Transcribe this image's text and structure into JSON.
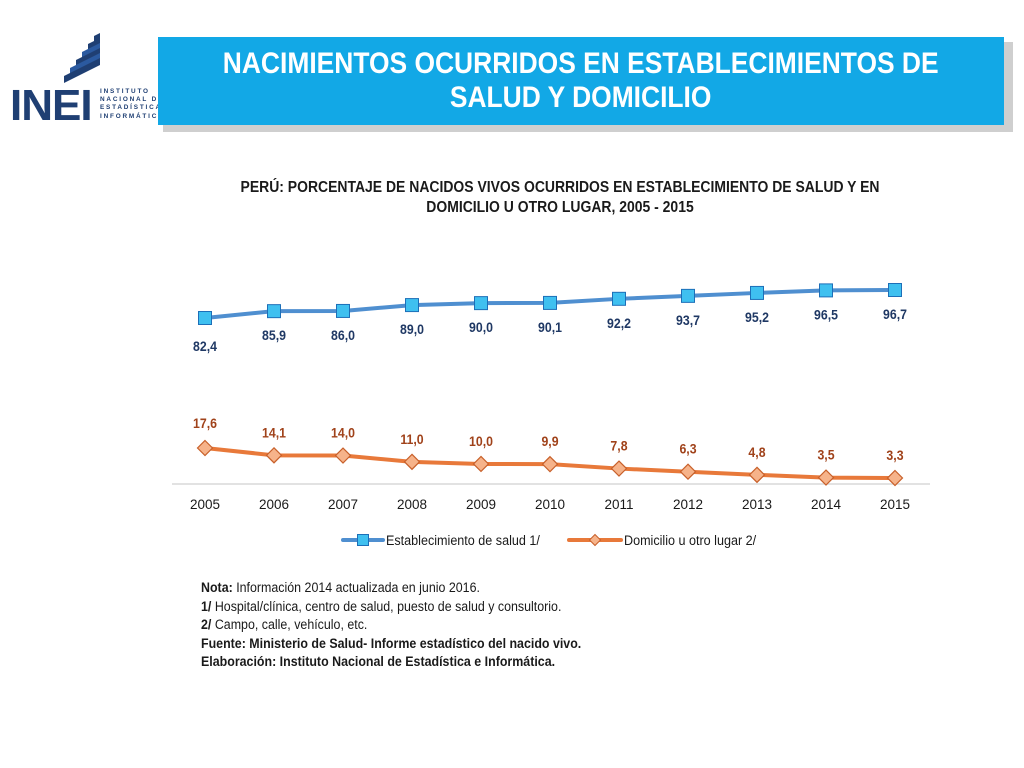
{
  "logo": {
    "letters": "INEI",
    "lines": [
      "INSTITUTO",
      "NACIONAL DE",
      "ESTADÍSTICA E",
      "INFORMÁTICA"
    ]
  },
  "header": {
    "title_line1": "NACIMIENTOS OCURRIDOS EN ESTABLECIMIENTOS DE",
    "title_line2": "SALUD Y DOMICILIO",
    "banner_color": "#12a8e6"
  },
  "chart_data": {
    "type": "line",
    "title_line1": "PERÚ: PORCENTAJE DE NACIDOS VIVOS OCURRIDOS EN ESTABLECIMIENTO DE SALUD Y EN",
    "title_line2": "DOMICILIO U OTRO LUGAR, 2005  - 2015",
    "categories": [
      "2005",
      "2006",
      "2007",
      "2008",
      "2009",
      "2010",
      "2011",
      "2012",
      "2013",
      "2014",
      "2015"
    ],
    "series": [
      {
        "name": "Establecimiento de salud 1/",
        "values": [
          82.4,
          85.9,
          86.0,
          89.0,
          90.0,
          90.1,
          92.2,
          93.7,
          95.2,
          96.5,
          96.7
        ],
        "labels": [
          "82,4",
          "85,9",
          "86,0",
          "89,0",
          "90,0",
          "90,1",
          "92,2",
          "93,7",
          "95,2",
          "96,5",
          "96,7"
        ],
        "color": "#4f8fd0",
        "marker": "square",
        "marker_color": "#3fc0f0",
        "label_color": "#1f3864"
      },
      {
        "name": "Domicilio u otro lugar 2/",
        "values": [
          17.6,
          14.1,
          14.0,
          11.0,
          10.0,
          9.9,
          7.8,
          6.3,
          4.8,
          3.5,
          3.3
        ],
        "labels": [
          "17,6",
          "14,1",
          "14,0",
          "11,0",
          "10,0",
          "9,9",
          "7,8",
          "6,3",
          "4,8",
          "3,5",
          "3,3"
        ],
        "color": "#e8793a",
        "marker": "diamond",
        "marker_color": "#f6b38a",
        "label_color": "#a0421a"
      }
    ],
    "legend_position": "bottom",
    "grid": false
  },
  "notes": {
    "nota_label": "Nota:",
    "nota_text": " Información 2014 actualizada en junio 2016.",
    "n1_label": "1/",
    "n1_text": " Hospital/clínica, centro de salud, puesto de salud y consultorio.",
    "n2_label": "2/",
    "n2_text": " Campo, calle, vehículo, etc.",
    "fuente": "Fuente: Ministerio de Salud- Informe estadístico del nacido vivo.",
    "elaboracion": "Elaboración: Instituto Nacional de Estadística e Informática."
  }
}
